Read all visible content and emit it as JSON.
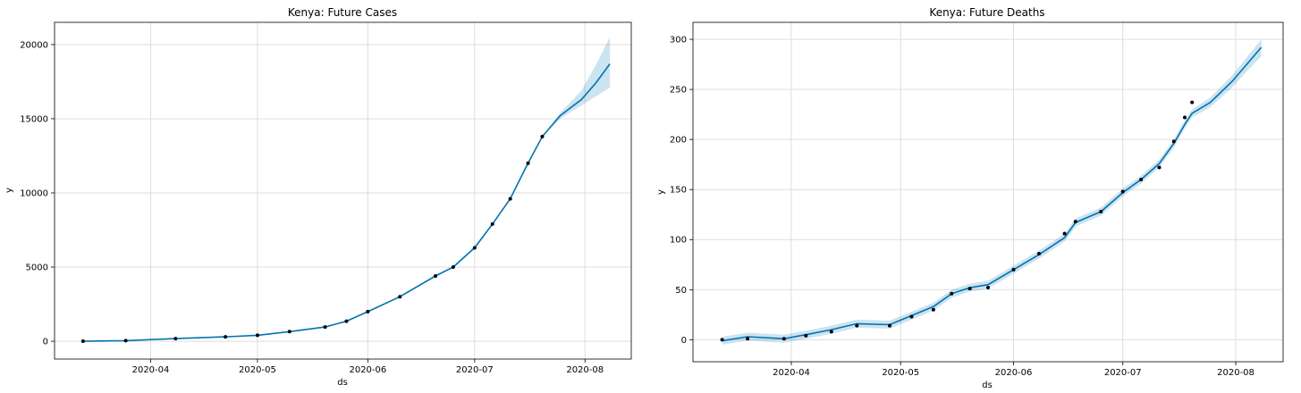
{
  "figure": {
    "background": "#ffffff"
  },
  "chart_data": [
    {
      "type": "line",
      "title": "Kenya: Future Cases",
      "xlabel": "ds",
      "ylabel": "y",
      "x_tick_labels": [
        "2020-04",
        "2020-05",
        "2020-06",
        "2020-07",
        "2020-08"
      ],
      "y_tick_labels": [
        "0",
        "5000",
        "10000",
        "15000",
        "20000"
      ],
      "y_ticks": [
        0,
        5000,
        10000,
        15000,
        20000
      ],
      "xlim": [
        "2020-03-05",
        "2020-08-14"
      ],
      "ylim": [
        -1200,
        21500
      ],
      "grid": true,
      "colors": {
        "forecast": "#0072B2",
        "band": "#0072B2",
        "observed": "#000000"
      },
      "observed": {
        "x": [
          "2020-03-13",
          "2020-03-25",
          "2020-04-08",
          "2020-04-22",
          "2020-05-01",
          "2020-05-10",
          "2020-05-20",
          "2020-05-26",
          "2020-06-01",
          "2020-06-10",
          "2020-06-20",
          "2020-06-25",
          "2020-07-01",
          "2020-07-06",
          "2020-07-11",
          "2020-07-16",
          "2020-07-20"
        ],
        "y": [
          1,
          40,
          180,
          300,
          400,
          650,
          960,
          1350,
          2000,
          3000,
          4400,
          5000,
          6300,
          7900,
          9600,
          12000,
          13800
        ]
      },
      "forecast": {
        "x": [
          "2020-03-13",
          "2020-03-25",
          "2020-04-08",
          "2020-04-22",
          "2020-05-01",
          "2020-05-10",
          "2020-05-20",
          "2020-05-26",
          "2020-06-01",
          "2020-06-10",
          "2020-06-20",
          "2020-06-25",
          "2020-07-01",
          "2020-07-06",
          "2020-07-11",
          "2020-07-16",
          "2020-07-20",
          "2020-07-25",
          "2020-07-31",
          "2020-08-04",
          "2020-08-08"
        ],
        "yhat": [
          0,
          40,
          180,
          300,
          400,
          650,
          960,
          1350,
          2000,
          3000,
          4400,
          5000,
          6300,
          7900,
          9600,
          12000,
          13800,
          15200,
          16300,
          17400,
          18700
        ],
        "lower": [
          0,
          40,
          180,
          300,
          400,
          650,
          960,
          1350,
          2000,
          3000,
          4400,
          5000,
          6300,
          7900,
          9600,
          12000,
          13800,
          15000,
          15900,
          16500,
          17100
        ],
        "upper": [
          0,
          40,
          180,
          300,
          400,
          650,
          960,
          1350,
          2000,
          3000,
          4400,
          5000,
          6300,
          7900,
          9600,
          12000,
          13800,
          15400,
          16900,
          18600,
          20500
        ]
      }
    },
    {
      "type": "line",
      "title": "Kenya: Future Deaths",
      "xlabel": "ds",
      "ylabel": "y",
      "x_tick_labels": [
        "2020-04",
        "2020-05",
        "2020-06",
        "2020-07",
        "2020-08"
      ],
      "y_tick_labels": [
        "0",
        "50",
        "100",
        "150",
        "200",
        "250",
        "300"
      ],
      "y_ticks": [
        0,
        50,
        100,
        150,
        200,
        250,
        300
      ],
      "xlim": [
        "2020-03-05",
        "2020-08-14"
      ],
      "ylim": [
        -22,
        317
      ],
      "grid": true,
      "colors": {
        "forecast": "#0072B2",
        "band": "#0072B2",
        "observed": "#000000"
      },
      "observed": {
        "x": [
          "2020-03-13",
          "2020-03-20",
          "2020-03-30",
          "2020-04-05",
          "2020-04-12",
          "2020-04-19",
          "2020-04-28",
          "2020-05-04",
          "2020-05-10",
          "2020-05-15",
          "2020-05-20",
          "2020-05-25",
          "2020-06-01",
          "2020-06-08",
          "2020-06-15",
          "2020-06-18",
          "2020-06-25",
          "2020-07-01",
          "2020-07-06",
          "2020-07-11",
          "2020-07-15",
          "2020-07-18",
          "2020-07-20"
        ],
        "y": [
          0,
          1,
          1,
          4,
          8,
          14,
          14,
          23,
          30,
          46,
          51,
          52,
          70,
          86,
          106,
          118,
          128,
          148,
          160,
          172,
          198,
          222,
          237
        ]
      },
      "forecast": {
        "x": [
          "2020-03-13",
          "2020-03-20",
          "2020-03-30",
          "2020-04-05",
          "2020-04-12",
          "2020-04-19",
          "2020-04-28",
          "2020-05-04",
          "2020-05-10",
          "2020-05-15",
          "2020-05-20",
          "2020-05-25",
          "2020-06-01",
          "2020-06-08",
          "2020-06-15",
          "2020-06-18",
          "2020-06-25",
          "2020-07-01",
          "2020-07-06",
          "2020-07-11",
          "2020-07-15",
          "2020-07-18",
          "2020-07-20",
          "2020-07-25",
          "2020-07-31",
          "2020-08-04",
          "2020-08-08"
        ],
        "yhat": [
          -1,
          3,
          1,
          5,
          10,
          16,
          15,
          24,
          33,
          46,
          52,
          55,
          70,
          85,
          102,
          117,
          128,
          147,
          160,
          176,
          196,
          215,
          226,
          237,
          258,
          275,
          292
        ],
        "lower": [
          -5,
          -1,
          -3,
          1,
          6,
          12,
          11,
          20,
          29,
          42,
          48,
          51,
          66,
          81,
          98,
          113,
          124,
          143,
          156,
          172,
          192,
          211,
          222,
          232,
          252,
          268,
          283
        ],
        "upper": [
          3,
          7,
          5,
          9,
          14,
          20,
          19,
          28,
          37,
          50,
          56,
          59,
          74,
          89,
          106,
          121,
          132,
          151,
          164,
          180,
          200,
          219,
          230,
          242,
          264,
          282,
          300
        ]
      }
    }
  ]
}
